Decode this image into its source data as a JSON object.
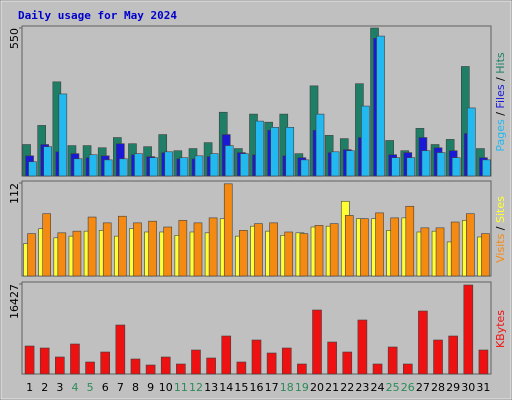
{
  "title": "Daily usage for May 2024",
  "legend_separator": " / ",
  "highlight_color": "#2e8b57",
  "highlight_categories": [
    "4",
    "5",
    "11",
    "12",
    "18",
    "19",
    "25",
    "26"
  ],
  "chart_data": [
    {
      "type": "bar",
      "ylim": [
        0,
        550
      ],
      "yticks": [
        550
      ],
      "series": [
        {
          "name": "Hits",
          "color": "#1f7f66",
          "values": [
            117,
            188,
            350,
            113,
            113,
            105,
            143,
            120,
            109,
            154,
            94,
            102,
            124,
            237,
            102,
            230,
            200,
            230,
            83,
            335,
            151,
            139,
            343,
            550,
            132,
            94,
            177,
            117,
            136,
            407,
            102
          ]
        },
        {
          "name": "Files",
          "color": "#1a1ad6",
          "values": [
            75,
            117,
            90,
            83,
            68,
            75,
            120,
            79,
            72,
            87,
            64,
            64,
            72,
            154,
            87,
            79,
            170,
            75,
            68,
            170,
            87,
            98,
            143,
            512,
            79,
            87,
            143,
            105,
            94,
            158,
            68
          ]
        },
        {
          "name": "Pages",
          "color": "#22b8f0",
          "values": [
            53,
            109,
            305,
            64,
            79,
            60,
            64,
            83,
            68,
            90,
            68,
            75,
            83,
            113,
            83,
            204,
            181,
            181,
            60,
            230,
            90,
            94,
            260,
            520,
            68,
            68,
            94,
            87,
            68,
            253,
            60
          ]
        }
      ]
    },
    {
      "type": "bar",
      "ylim": [
        0,
        112
      ],
      "yticks": [
        112
      ],
      "series": [
        {
          "name": "Sites",
          "color": "#ffff33",
          "values": [
            39,
            57,
            46,
            48,
            54,
            55,
            48,
            57,
            53,
            53,
            49,
            53,
            52,
            69,
            48,
            60,
            54,
            49,
            52,
            59,
            60,
            90,
            69,
            69,
            55,
            70,
            53,
            54,
            41,
            67,
            47
          ]
        },
        {
          "name": "Visits",
          "color": "#f58a12",
          "values": [
            51,
            75,
            52,
            54,
            71,
            64,
            72,
            64,
            66,
            59,
            67,
            64,
            70,
            111,
            55,
            63,
            64,
            53,
            51,
            61,
            63,
            73,
            69,
            76,
            70,
            84,
            58,
            58,
            65,
            75,
            51
          ]
        }
      ]
    },
    {
      "type": "bar",
      "ylim": [
        0,
        16427
      ],
      "yticks": [
        16427
      ],
      "categories": [
        "1",
        "2",
        "3",
        "4",
        "5",
        "6",
        "7",
        "8",
        "9",
        "10",
        "11",
        "12",
        "13",
        "14",
        "15",
        "16",
        "17",
        "18",
        "19",
        "20",
        "21",
        "22",
        "23",
        "24",
        "25",
        "26",
        "27",
        "28",
        "29",
        "30",
        "31"
      ],
      "series": [
        {
          "name": "KBytes",
          "color": "#ee1111",
          "values": [
            5110,
            4745,
            3103,
            5475,
            2190,
            4015,
            8943,
            2738,
            1643,
            3103,
            1825,
            4380,
            2920,
            6935,
            2190,
            6205,
            3833,
            4745,
            1825,
            11680,
            5840,
            4015,
            9855,
            1825,
            4928,
            1825,
            11498,
            6205,
            6935,
            16244,
            4380
          ]
        }
      ]
    }
  ]
}
